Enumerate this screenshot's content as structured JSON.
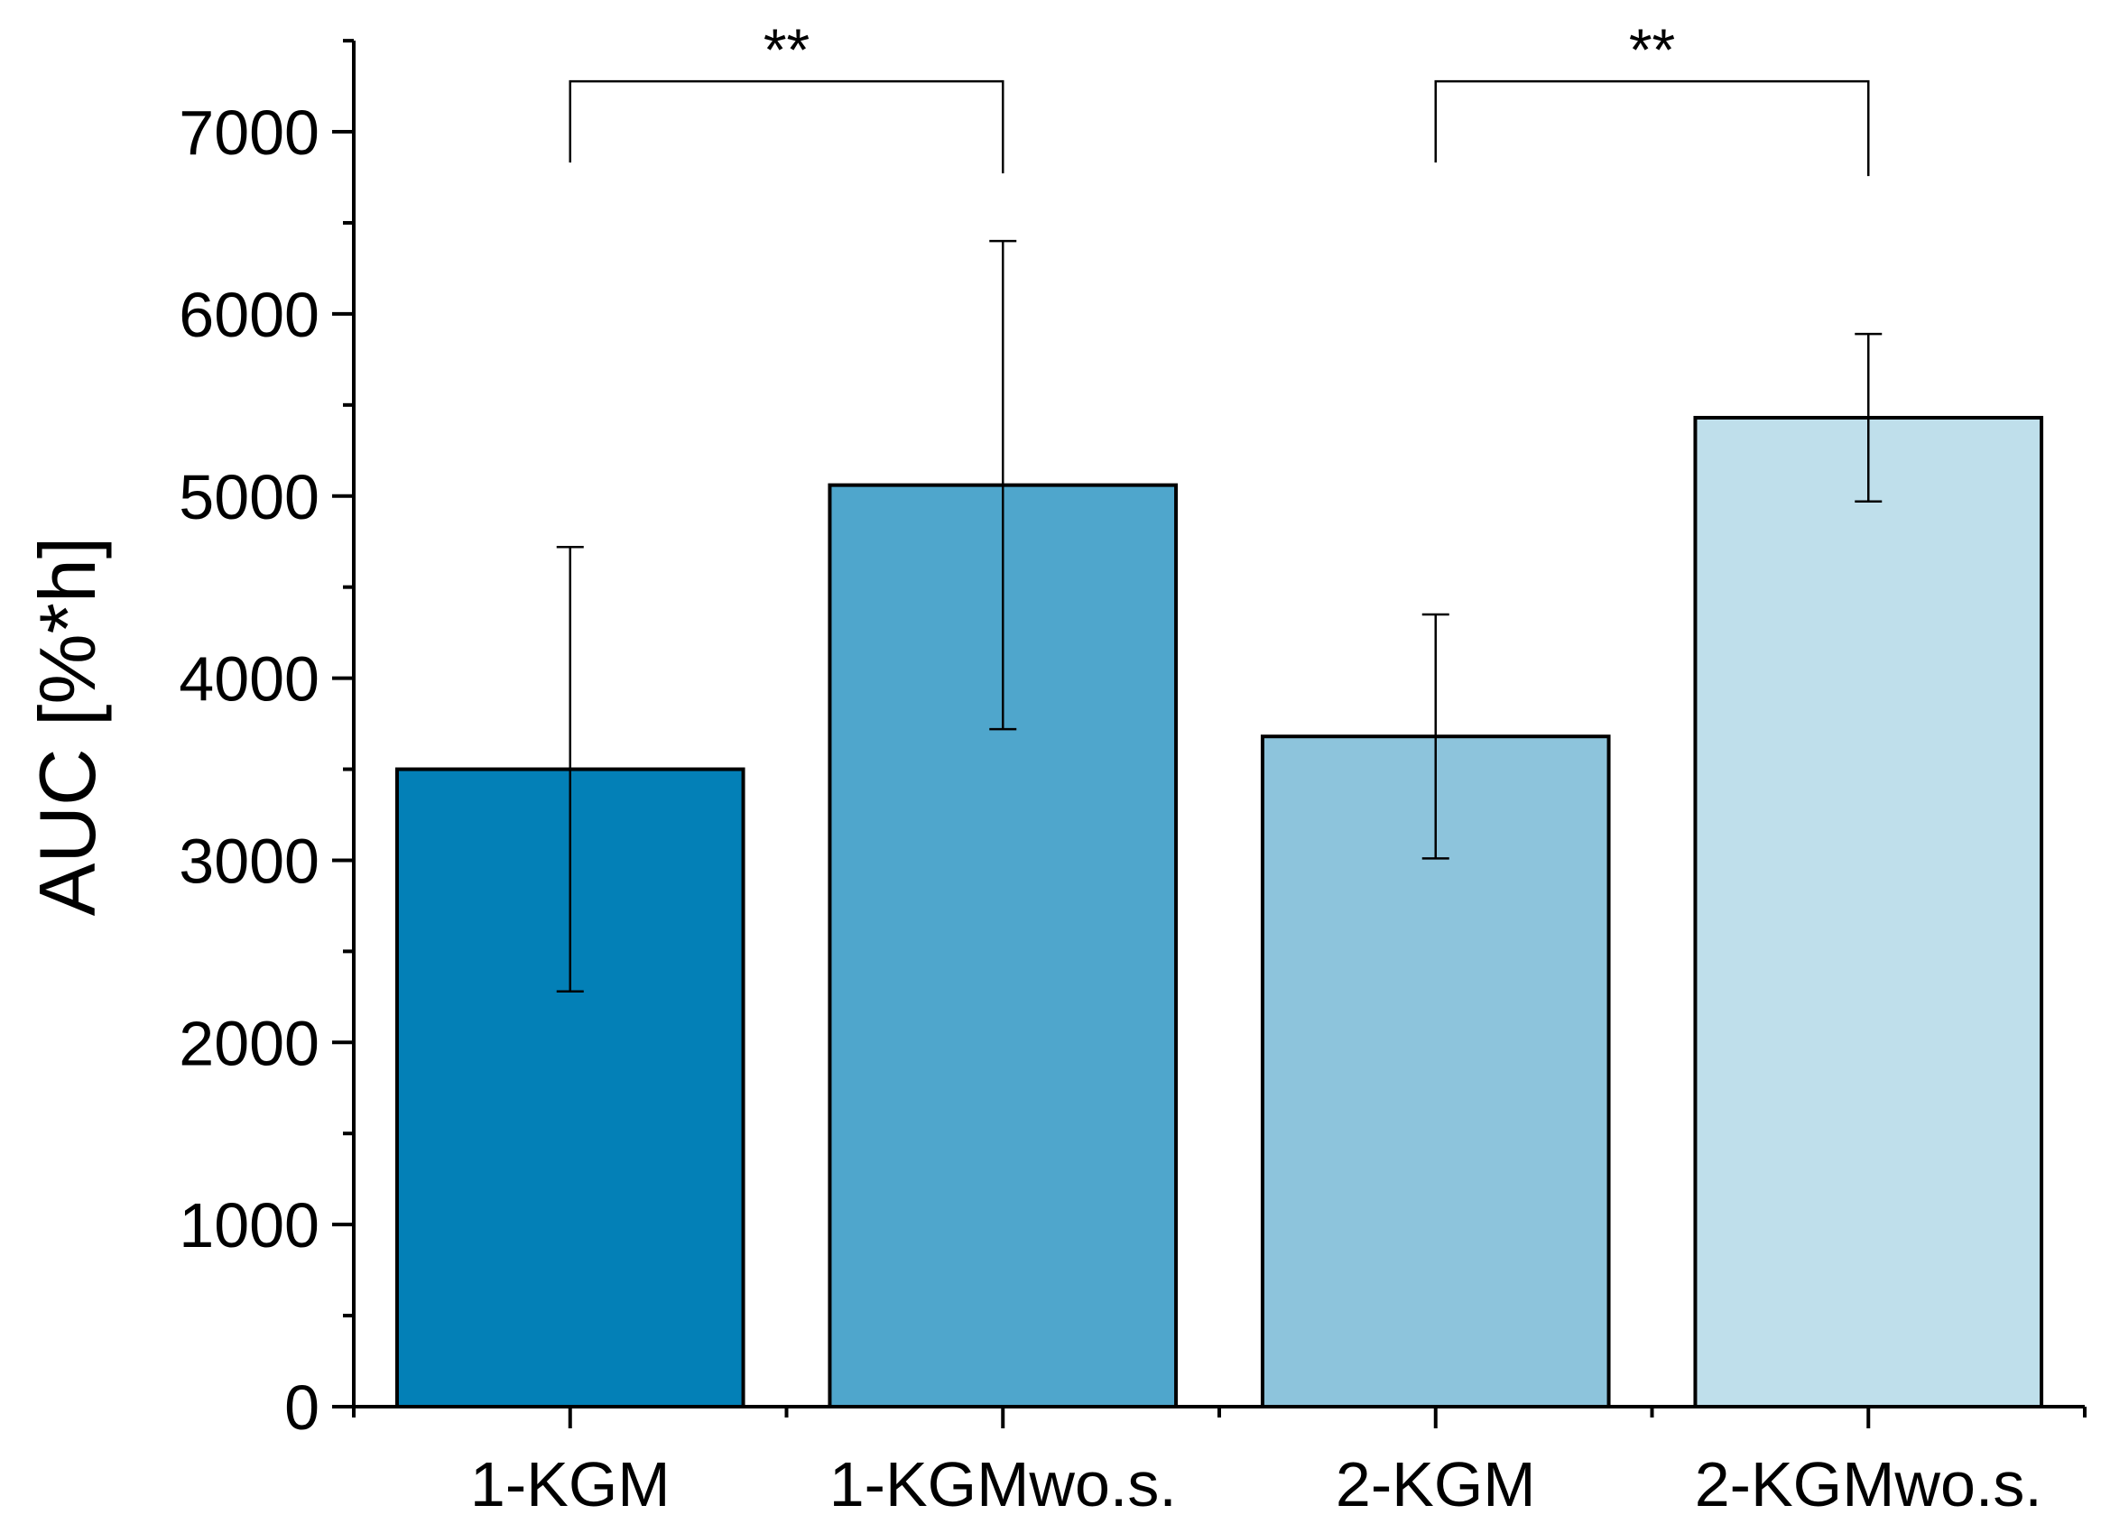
{
  "chart_data": {
    "type": "bar",
    "title": "",
    "xlabel": "",
    "ylabel": "AUC [%*h]",
    "ylim": [
      0,
      7500
    ],
    "yticks": [
      0,
      1000,
      2000,
      3000,
      4000,
      5000,
      6000,
      7000
    ],
    "ytick_labels": [
      "0",
      "1000",
      "2000",
      "3000",
      "4000",
      "5000",
      "6000",
      "7000"
    ],
    "y_minor_step": 500,
    "categories": [
      "1-KGM",
      "1-KGMwo.s.",
      "2-KGM",
      "2-KGMwo.s."
    ],
    "values": [
      3500,
      5060,
      3680,
      5430
    ],
    "errors": [
      1220,
      1340,
      670,
      460
    ],
    "colors": [
      "#0380b7",
      "#4fa6cc",
      "#8dc4dc",
      "#bfdfeb"
    ],
    "significance": [
      {
        "from": 0,
        "to": 1,
        "label": "**",
        "level": 6980
      },
      {
        "from": 2,
        "to": 3,
        "label": "**",
        "level": 6980
      }
    ],
    "grid": false,
    "legend": "none"
  }
}
